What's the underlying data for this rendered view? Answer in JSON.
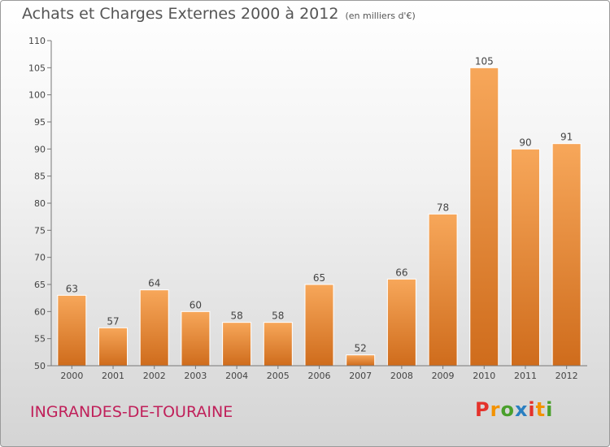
{
  "header": {
    "title": "Achats et Charges Externes 2000 à 2012",
    "unit": "(en milliers d'€)"
  },
  "footer": {
    "town": "INGRANDES-DE-TOURAINE",
    "logo": "Proxiti"
  },
  "colors": {
    "bar_light": "#f7a75a",
    "bar_dark": "#cf6c1c",
    "town": "#c0205a",
    "logo": [
      "#e4322b",
      "#f39200",
      "#4aa02c",
      "#2a7fc1",
      "#e4322b",
      "#f39200",
      "#4aa02c"
    ]
  },
  "chart_data": {
    "type": "bar",
    "categories": [
      "2000",
      "2001",
      "2002",
      "2003",
      "2004",
      "2005",
      "2006",
      "2007",
      "2008",
      "2009",
      "2010",
      "2011",
      "2012"
    ],
    "values": [
      63,
      57,
      64,
      60,
      58,
      58,
      65,
      52,
      66,
      78,
      105,
      90,
      91
    ],
    "ylim": [
      50,
      110
    ],
    "yticks": [
      50,
      55,
      60,
      65,
      70,
      75,
      80,
      85,
      90,
      95,
      100,
      105,
      110
    ],
    "xlabel": "",
    "ylabel": "",
    "grid": false,
    "data_labels": true
  }
}
